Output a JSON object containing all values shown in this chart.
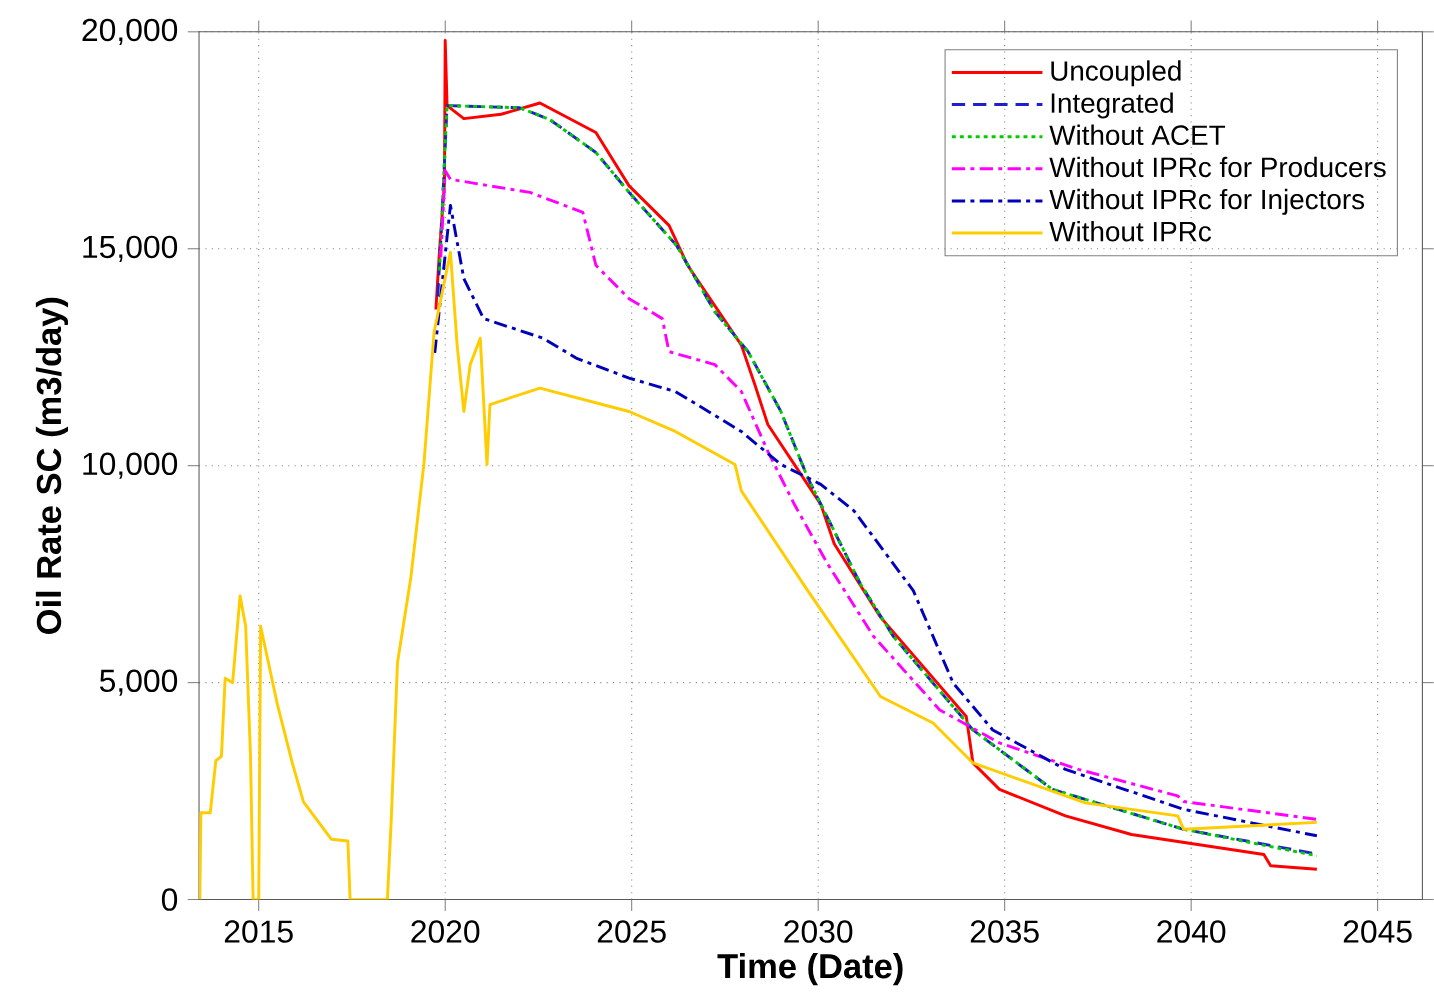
{
  "chart_data": {
    "type": "line",
    "xlabel": "Time (Date)",
    "ylabel": "Oil Rate SC (m3/day)",
    "xlim": [
      2013.4,
      2046.2
    ],
    "xticks": [
      2015,
      2020,
      2025,
      2030,
      2035,
      2040,
      2045
    ],
    "ylim": [
      0,
      20000
    ],
    "yticks": [
      {
        "value": 0,
        "label": "0"
      },
      {
        "value": 5000,
        "label": "5,000"
      },
      {
        "value": 10000,
        "label": "10,000"
      },
      {
        "value": 15000,
        "label": "15,000"
      },
      {
        "value": 20000,
        "label": "20,000"
      }
    ],
    "grid": true,
    "legend": "top right",
    "series": [
      {
        "name": "Uncoupled",
        "color": "#ff0000",
        "line_style": "solid",
        "x": [
          2019.75,
          2019.85,
          2019.98,
          2020.0,
          2020.05,
          2020.5,
          2021.5,
          2022.54,
          2024.04,
          2024.93,
          2026.0,
          2026.5,
          2027.94,
          2028.3,
          2028.65,
          2029.36,
          2030.07,
          2030.43,
          2031.67,
          2033.97,
          2034.15,
          2034.86,
          2036.63,
          2038.4,
          2041.95,
          2042.13,
          2043.37
        ],
        "values": [
          13600,
          15000,
          16500,
          19800,
          18300,
          18000,
          18100,
          18360,
          17680,
          16450,
          15540,
          14620,
          12780,
          11870,
          10950,
          10030,
          9110,
          8200,
          6510,
          4220,
          3150,
          2540,
          1930,
          1500,
          1040,
          780,
          700
        ]
      },
      {
        "name": "Integrated",
        "color": "#1f1fcc",
        "line_style": "dashed",
        "x": [
          2019.8,
          2019.9,
          2020.05,
          2022.0,
          2022.8,
          2024.04,
          2024.93,
          2026.2,
          2027.23,
          2028.12,
          2029.0,
          2029.72,
          2031.13,
          2032.02,
          2034.15,
          2036.28,
          2039.8,
          2043.37
        ],
        "values": [
          13900,
          15500,
          18300,
          18250,
          17980,
          17220,
          16300,
          15080,
          13550,
          12630,
          11250,
          9720,
          7280,
          6060,
          3910,
          2540,
          1620,
          1050
        ]
      },
      {
        "name": "Without ACET",
        "color": "#00cc00",
        "line_style": "dotted",
        "x": [
          2019.85,
          2019.95,
          2020.05,
          2022.0,
          2022.8,
          2024.04,
          2024.93,
          2026.2,
          2027.23,
          2028.12,
          2029.0,
          2029.72,
          2031.13,
          2032.02,
          2034.15,
          2036.28,
          2039.8,
          2043.37
        ],
        "values": [
          14500,
          16500,
          18300,
          18250,
          17980,
          17220,
          16300,
          15080,
          13550,
          12630,
          11250,
          9720,
          7280,
          6060,
          3910,
          2540,
          1620,
          1010
        ]
      },
      {
        "name": "Without IPRc for Producers",
        "color": "#ff00ff",
        "line_style": "dashdot",
        "x": [
          2019.88,
          2020.0,
          2020.14,
          2022.27,
          2023.69,
          2024.04,
          2024.93,
          2025.82,
          2026.0,
          2027.23,
          2027.94,
          2028.65,
          2029.36,
          2030.25,
          2031.49,
          2033.26,
          2034.86,
          2036.98,
          2039.64,
          2039.8,
          2043.37
        ],
        "values": [
          14800,
          16800,
          16600,
          16300,
          15840,
          14620,
          13850,
          13390,
          12630,
          12330,
          11710,
          10330,
          9110,
          7740,
          6060,
          4370,
          3610,
          3000,
          2390,
          2260,
          1850
        ]
      },
      {
        "name": "Without IPRc for Injectors",
        "color": "#0000bb",
        "line_style": "dashdot",
        "x": [
          2019.72,
          2020.14,
          2020.5,
          2021.03,
          2022.62,
          2023.51,
          2024.93,
          2026.17,
          2027.94,
          2029.0,
          2030.07,
          2030.96,
          2032.55,
          2033.62,
          2034.68,
          2036.63,
          2039.8,
          2043.37
        ],
        "values": [
          12600,
          16000,
          14310,
          13390,
          12940,
          12480,
          12020,
          11710,
          10790,
          10030,
          9570,
          8960,
          7120,
          4990,
          3910,
          3000,
          2080,
          1470
        ]
      },
      {
        "name": "Without IPRc",
        "color": "#ffcc00",
        "line_style": "solid",
        "x": [
          2013.42,
          2013.45,
          2013.7,
          2013.85,
          2014.0,
          2014.1,
          2014.3,
          2014.5,
          2014.65,
          2014.78,
          2014.85,
          2015.0,
          2015.05,
          2015.5,
          2015.9,
          2016.2,
          2016.95,
          2017.39,
          2017.45,
          2018.45,
          2018.55,
          2018.72,
          2019.08,
          2019.43,
          2019.7,
          2020.14,
          2020.32,
          2020.5,
          2020.67,
          2020.94,
          2021.12,
          2021.2,
          2022.54,
          2024.93,
          2026.17,
          2027.77,
          2027.94,
          2029.72,
          2031.67,
          2033.08,
          2034.15,
          2037.16,
          2039.64,
          2039.8,
          2043.37
        ],
        "values": [
          0,
          2000,
          2000,
          3200,
          3300,
          5100,
          5000,
          7000,
          6300,
          3300,
          0,
          0,
          6300,
          4500,
          3150,
          2250,
          1390,
          1350,
          0,
          0,
          1780,
          5460,
          7430,
          10050,
          13070,
          14920,
          12780,
          11250,
          12330,
          12940,
          10030,
          11410,
          11790,
          11250,
          10790,
          10030,
          9420,
          7120,
          4680,
          4070,
          3150,
          2230,
          1930,
          1620,
          1780
        ]
      }
    ]
  }
}
